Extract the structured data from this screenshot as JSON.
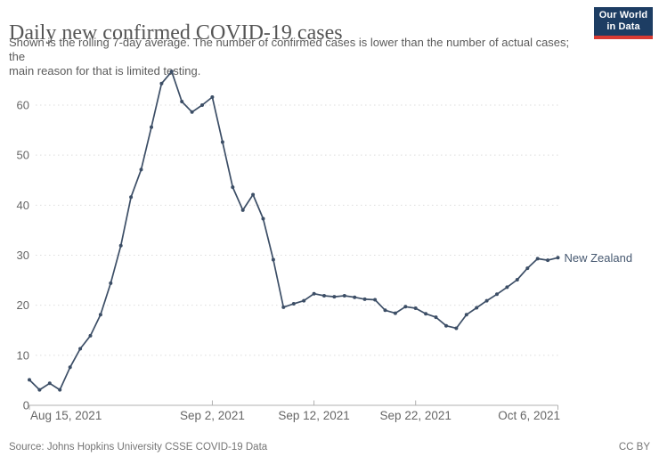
{
  "header": {
    "title": "Daily new confirmed COVID-19 cases",
    "subtitle_lines": [
      "Shown is the rolling 7-day average. The number of confirmed cases is lower than the number of actual cases; the",
      "main reason for that is limited testing."
    ]
  },
  "logo": {
    "line1": "Our World",
    "line2": "in Data"
  },
  "chart_data": {
    "type": "line",
    "title": "Daily new confirmed COVID-19 cases",
    "entity": "New Zealand",
    "series_label": "New Zealand",
    "x_unit": "date",
    "ylabel": "",
    "xlabel": "",
    "ylim": [
      0,
      68
    ],
    "grid": "horizontal-dotted",
    "legend_position": "end-of-line",
    "yticks": [
      0,
      10,
      20,
      30,
      40,
      50,
      60
    ],
    "xticks": [
      {
        "label": "Aug 15, 2021",
        "index": 0,
        "align": "start"
      },
      {
        "label": "Sep 2, 2021",
        "index": 18,
        "align": "middle"
      },
      {
        "label": "Sep 12, 2021",
        "index": 28,
        "align": "middle"
      },
      {
        "label": "Sep 22, 2021",
        "index": 38,
        "align": "middle"
      },
      {
        "label": "Oct 6, 2021",
        "index": 52,
        "align": "end"
      }
    ],
    "dates": [
      "2021-08-15",
      "2021-08-16",
      "2021-08-17",
      "2021-08-18",
      "2021-08-19",
      "2021-08-20",
      "2021-08-21",
      "2021-08-22",
      "2021-08-23",
      "2021-08-24",
      "2021-08-25",
      "2021-08-26",
      "2021-08-27",
      "2021-08-28",
      "2021-08-29",
      "2021-08-30",
      "2021-08-31",
      "2021-09-01",
      "2021-09-02",
      "2021-09-03",
      "2021-09-04",
      "2021-09-05",
      "2021-09-06",
      "2021-09-07",
      "2021-09-08",
      "2021-09-09",
      "2021-09-10",
      "2021-09-11",
      "2021-09-12",
      "2021-09-13",
      "2021-09-14",
      "2021-09-15",
      "2021-09-16",
      "2021-09-17",
      "2021-09-18",
      "2021-09-19",
      "2021-09-20",
      "2021-09-21",
      "2021-09-22",
      "2021-09-23",
      "2021-09-24",
      "2021-09-25",
      "2021-09-26",
      "2021-09-27",
      "2021-09-28",
      "2021-09-29",
      "2021-09-30",
      "2021-10-01",
      "2021-10-02",
      "2021-10-03",
      "2021-10-04",
      "2021-10-05",
      "2021-10-06"
    ],
    "values": [
      5.1,
      3.1,
      4.4,
      3.1,
      7.6,
      11.3,
      13.9,
      18.1,
      24.4,
      31.9,
      41.6,
      47.1,
      55.6,
      64.3,
      66.7,
      60.7,
      58.6,
      60.0,
      61.6,
      52.6,
      43.6,
      39.0,
      42.1,
      37.3,
      29.1,
      19.6,
      20.3,
      20.9,
      22.3,
      21.9,
      21.7,
      21.9,
      21.6,
      21.2,
      21.1,
      19.0,
      18.4,
      19.7,
      19.4,
      18.3,
      17.6,
      15.9,
      15.4,
      18.1,
      19.5,
      20.9,
      22.2,
      23.6,
      25.1,
      27.4,
      29.3,
      29.0,
      29.5
    ]
  },
  "footer": {
    "source": "Source: Johns Hopkins University CSSE COVID-19 Data",
    "license": "CC BY"
  },
  "colors": {
    "line": "#3C4E66",
    "series_label": "#465870",
    "grid": "#DDDDDD",
    "axis": "#B0B0B0",
    "tick_text": "#666666",
    "title": "#555555",
    "subtitle": "#5B5B5B",
    "footer": "#757575",
    "logo_bg": "#1D3D63",
    "logo_accent": "#D93B33",
    "background": "#FFFFFF"
  }
}
